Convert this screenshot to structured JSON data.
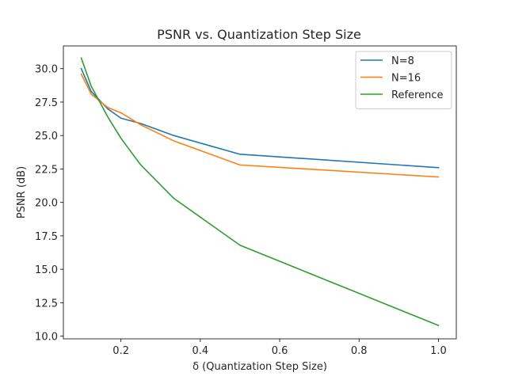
{
  "chart_data": {
    "type": "line",
    "title": "PSNR vs. Quantization Step Size",
    "xlabel": "δ (Quantization Step Size)",
    "ylabel": "PSNR (dB)",
    "xlim": [
      0.055,
      1.045
    ],
    "ylim": [
      9.8,
      31.7
    ],
    "xticks": [
      0.2,
      0.4,
      0.6,
      0.8,
      1.0
    ],
    "xtick_labels": [
      "0.2",
      "0.4",
      "0.6",
      "0.8",
      "1.0"
    ],
    "yticks": [
      10.0,
      12.5,
      15.0,
      17.5,
      20.0,
      22.5,
      25.0,
      27.5,
      30.0
    ],
    "ytick_labels": [
      "10.0",
      "12.5",
      "15.0",
      "17.5",
      "20.0",
      "22.5",
      "25.0",
      "27.5",
      "30.0"
    ],
    "grid": false,
    "legend_position": "top-right",
    "series": [
      {
        "name": "N=8",
        "color": "#1f77b4",
        "x": [
          0.1,
          0.125,
          0.1667,
          0.2,
          0.25,
          0.3333,
          0.5,
          1.0
        ],
        "y": [
          30.0,
          28.3,
          27.0,
          26.3,
          25.9,
          25.0,
          23.6,
          22.6
        ]
      },
      {
        "name": "N=16",
        "color": "#ff7f0e",
        "x": [
          0.1,
          0.125,
          0.1667,
          0.2,
          0.25,
          0.3333,
          0.5,
          1.0
        ],
        "y": [
          29.6,
          28.1,
          27.1,
          26.7,
          25.8,
          24.6,
          22.8,
          21.9
        ]
      },
      {
        "name": "Reference",
        "color": "#2ca02c",
        "x": [
          0.1,
          0.125,
          0.1667,
          0.2,
          0.25,
          0.3333,
          0.5,
          1.0
        ],
        "y": [
          30.8,
          28.7,
          26.4,
          24.8,
          22.8,
          20.3,
          16.8,
          10.8
        ]
      }
    ]
  }
}
